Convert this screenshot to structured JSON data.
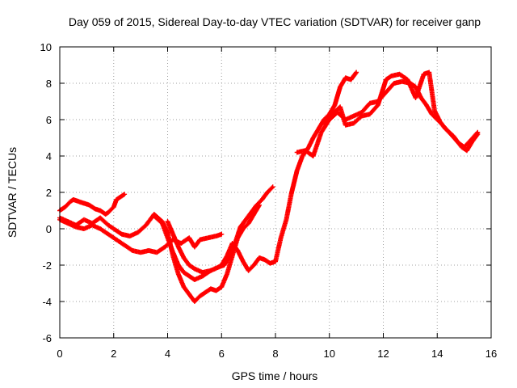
{
  "chart_data": {
    "type": "scatter",
    "title": "Day 059 of 2015, Sidereal Day-to-day VTEC variation (SDTVAR) for receiver ganp",
    "xlabel": "GPS time / hours",
    "ylabel": "SDTVAR / TECUs",
    "xlim": [
      0,
      16
    ],
    "ylim": [
      -6,
      10
    ],
    "xticks": [
      "0",
      "2",
      "4",
      "6",
      "8",
      "10",
      "12",
      "14",
      "16"
    ],
    "yticks": [
      "-6",
      "-4",
      "-2",
      "0",
      "2",
      "4",
      "6",
      "8",
      "10"
    ],
    "grid": true,
    "marker": "plus",
    "color": "#ff0000",
    "series": [
      {
        "x": [
          0.0,
          0.2,
          0.4,
          0.5,
          0.7,
          0.9,
          1.1,
          1.3,
          1.5,
          1.7,
          1.8,
          2.0,
          2.1,
          2.3,
          2.4
        ],
        "y": [
          1.0,
          1.2,
          1.5,
          1.6,
          1.5,
          1.4,
          1.3,
          1.1,
          1.0,
          0.8,
          0.9,
          1.2,
          1.6,
          1.8,
          1.9
        ]
      },
      {
        "x": [
          0.0,
          0.3,
          0.6,
          0.9,
          1.2,
          1.5,
          1.8,
          2.1,
          2.4,
          2.7,
          3.0,
          3.3,
          3.6,
          3.9,
          4.2,
          4.5,
          4.8,
          5.0,
          5.2,
          5.5,
          5.8,
          6.0
        ],
        "y": [
          0.5,
          0.3,
          0.1,
          0.0,
          0.2,
          0.0,
          -0.3,
          -0.6,
          -0.9,
          -1.2,
          -1.3,
          -1.2,
          -1.3,
          -1.0,
          -0.6,
          -0.8,
          -0.5,
          -1.0,
          -0.6,
          -0.5,
          -0.4,
          -0.3
        ]
      },
      {
        "x": [
          0.0,
          0.3,
          0.6,
          0.9,
          1.2,
          1.5,
          1.8,
          2.1,
          2.3,
          2.6,
          2.9,
          3.2,
          3.5,
          3.8,
          4.0,
          4.2,
          4.4,
          4.6,
          4.8,
          5.0,
          5.2,
          5.4,
          5.6,
          5.8,
          6.0,
          6.2,
          6.4,
          6.6,
          6.8,
          7.0,
          7.2,
          7.4
        ],
        "y": [
          0.6,
          0.4,
          0.2,
          0.5,
          0.3,
          0.6,
          0.2,
          -0.1,
          -0.3,
          -0.4,
          -0.2,
          0.2,
          0.8,
          0.4,
          -0.2,
          -1.5,
          -2.5,
          -3.2,
          -3.6,
          -4.0,
          -3.7,
          -3.5,
          -3.3,
          -3.4,
          -3.2,
          -2.5,
          -1.5,
          -0.5,
          0.0,
          0.3,
          0.8,
          1.3
        ]
      },
      {
        "x": [
          3.5,
          3.8,
          4.0,
          4.2,
          4.4,
          4.6,
          4.8,
          5.0,
          5.3,
          5.6,
          5.9,
          6.1,
          6.3,
          6.5,
          6.7,
          6.9,
          7.1,
          7.3,
          7.5,
          7.7,
          7.9
        ],
        "y": [
          0.7,
          0.3,
          -0.5,
          -1.3,
          -2.0,
          -2.4,
          -2.6,
          -2.8,
          -2.6,
          -2.3,
          -2.1,
          -2.0,
          -1.5,
          -0.8,
          0.1,
          0.5,
          0.9,
          1.3,
          1.6,
          2.0,
          2.3
        ]
      },
      {
        "x": [
          4.0,
          4.2,
          4.4,
          4.6,
          4.8,
          5.0,
          5.3,
          5.6,
          5.9,
          6.0,
          6.2,
          6.4,
          6.6,
          6.8,
          7.0,
          7.2,
          7.4,
          7.6,
          7.8,
          8.0,
          8.2,
          8.4,
          8.6,
          8.8,
          9.0,
          9.2,
          9.4,
          9.6,
          9.8,
          10.0,
          10.2,
          10.4,
          10.6,
          10.8,
          11.0
        ],
        "y": [
          0.4,
          -0.3,
          -1.0,
          -1.6,
          -2.0,
          -2.2,
          -2.4,
          -2.3,
          -2.1,
          -2.0,
          -1.5,
          -0.8,
          -1.2,
          -1.8,
          -2.3,
          -2.0,
          -1.6,
          -1.7,
          -1.9,
          -1.8,
          -0.5,
          0.5,
          2.0,
          3.2,
          4.0,
          4.4,
          5.0,
          5.5,
          6.0,
          6.3,
          6.8,
          7.8,
          8.3,
          8.2,
          8.6
        ]
      },
      {
        "x": [
          8.8,
          9.1,
          9.4,
          9.7,
          10.0,
          10.3,
          10.6,
          10.9,
          11.2,
          11.5,
          11.8,
          12.1,
          12.4,
          12.7,
          13.0,
          13.2,
          13.4,
          13.6,
          13.8,
          14.0,
          14.2,
          14.5,
          14.8,
          15.0,
          15.2,
          15.5
        ],
        "y": [
          4.2,
          4.3,
          4.0,
          5.3,
          6.0,
          6.4,
          6.0,
          6.2,
          6.4,
          6.9,
          7.0,
          7.5,
          8.0,
          8.1,
          8.0,
          7.8,
          7.2,
          6.8,
          6.3,
          6.0,
          5.7,
          5.2,
          4.7,
          4.5,
          4.8,
          5.3
        ]
      },
      {
        "x": [
          9.8,
          10.1,
          10.4,
          10.6,
          10.9,
          11.2,
          11.5,
          11.8,
          12.1,
          12.3,
          12.6,
          12.9,
          13.2,
          13.5,
          13.7,
          13.9,
          14.1,
          14.3,
          14.6,
          14.9,
          15.1,
          15.3,
          15.5
        ],
        "y": [
          5.8,
          6.3,
          6.7,
          5.7,
          5.8,
          6.2,
          6.3,
          6.8,
          8.2,
          8.4,
          8.5,
          8.2,
          7.2,
          8.5,
          8.6,
          6.5,
          5.9,
          5.5,
          5.1,
          4.5,
          4.3,
          4.8,
          5.2
        ]
      }
    ]
  }
}
